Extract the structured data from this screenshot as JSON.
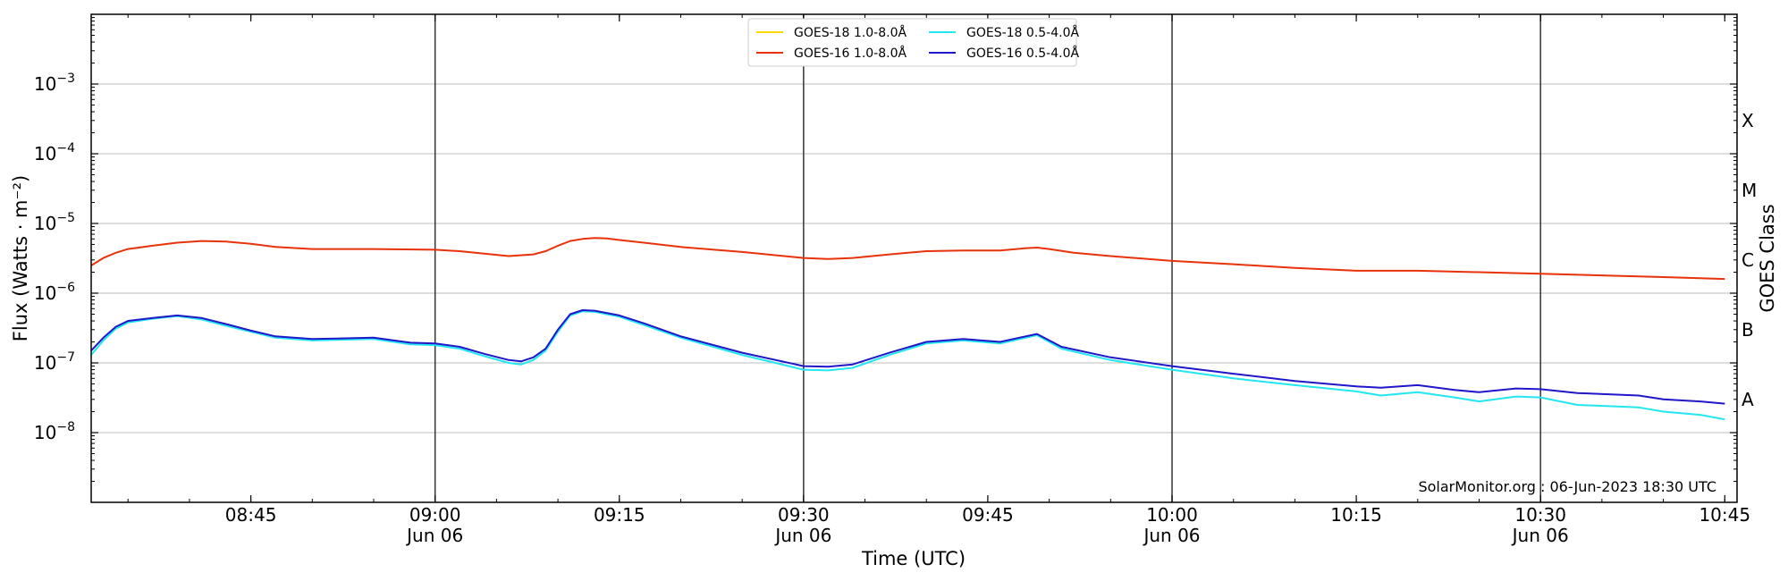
{
  "chart_data": {
    "type": "line",
    "title": "",
    "xlabel": "Time (UTC)",
    "ylabel": "Flux (Watts · m⁻²)",
    "y2label": "GOES Class",
    "y_scale": "log",
    "ylim": [
      1e-09,
      0.01
    ],
    "xlim": [
      "08:32",
      "10:46"
    ],
    "grid": "horizontal major gridlines at each decade",
    "legend_position": "top-center",
    "credit": "SolarMonitor.org : 06-Jun-2023 18:30 UTC",
    "y_ticks": [
      {
        "value": 1e-08,
        "base": "10",
        "exp": "−8"
      },
      {
        "value": 1e-07,
        "base": "10",
        "exp": "−7"
      },
      {
        "value": 1e-06,
        "base": "10",
        "exp": "−6"
      },
      {
        "value": 1e-05,
        "base": "10",
        "exp": "−5"
      },
      {
        "value": 0.0001,
        "base": "10",
        "exp": "−4"
      },
      {
        "value": 0.001,
        "base": "10",
        "exp": "−3"
      }
    ],
    "x_ticks": [
      {
        "time": "08:45",
        "label": "08:45",
        "sublabel": ""
      },
      {
        "time": "09:00",
        "label": "09:00",
        "sublabel": "Jun 06"
      },
      {
        "time": "09:15",
        "label": "09:15",
        "sublabel": ""
      },
      {
        "time": "09:30",
        "label": "09:30",
        "sublabel": "Jun 06"
      },
      {
        "time": "09:45",
        "label": "09:45",
        "sublabel": ""
      },
      {
        "time": "10:00",
        "label": "10:00",
        "sublabel": "Jun 06"
      },
      {
        "time": "10:15",
        "label": "10:15",
        "sublabel": ""
      },
      {
        "time": "10:30",
        "label": "10:30",
        "sublabel": "Jun 06"
      },
      {
        "time": "10:45",
        "label": "10:45",
        "sublabel": ""
      }
    ],
    "vertical_markers": [
      "09:00",
      "09:30",
      "10:00",
      "10:30"
    ],
    "goes_classes": [
      {
        "label": "X",
        "value": 0.0003
      },
      {
        "label": "M",
        "value": 3e-05
      },
      {
        "label": "C",
        "value": 3e-06
      },
      {
        "label": "B",
        "value": 3e-07
      },
      {
        "label": "A",
        "value": 3e-08
      }
    ],
    "series": [
      {
        "name": "GOES-18 1.0-8.0Å",
        "color": "#ffd700",
        "points": []
      },
      {
        "name": "GOES-16 1.0-8.0Å",
        "color": "#e8320a",
        "points": [
          [
            "08:32",
            2.5e-06
          ],
          [
            "08:33",
            3.2e-06
          ],
          [
            "08:34",
            3.8e-06
          ],
          [
            "08:35",
            4.3e-06
          ],
          [
            "08:37",
            4.8e-06
          ],
          [
            "08:39",
            5.3e-06
          ],
          [
            "08:41",
            5.6e-06
          ],
          [
            "08:43",
            5.5e-06
          ],
          [
            "08:45",
            5.1e-06
          ],
          [
            "08:47",
            4.6e-06
          ],
          [
            "08:50",
            4.3e-06
          ],
          [
            "08:55",
            4.3e-06
          ],
          [
            "09:00",
            4.2e-06
          ],
          [
            "09:02",
            4e-06
          ],
          [
            "09:04",
            3.7e-06
          ],
          [
            "09:06",
            3.4e-06
          ],
          [
            "09:08",
            3.6e-06
          ],
          [
            "09:09",
            4e-06
          ],
          [
            "09:10",
            4.8e-06
          ],
          [
            "09:11",
            5.6e-06
          ],
          [
            "09:12",
            6e-06
          ],
          [
            "09:13",
            6.2e-06
          ],
          [
            "09:14",
            6.1e-06
          ],
          [
            "09:15",
            5.8e-06
          ],
          [
            "09:17",
            5.3e-06
          ],
          [
            "09:20",
            4.6e-06
          ],
          [
            "09:25",
            3.9e-06
          ],
          [
            "09:30",
            3.2e-06
          ],
          [
            "09:32",
            3.1e-06
          ],
          [
            "09:34",
            3.2e-06
          ],
          [
            "09:37",
            3.6e-06
          ],
          [
            "09:40",
            4e-06
          ],
          [
            "09:43",
            4.1e-06
          ],
          [
            "09:46",
            4.1e-06
          ],
          [
            "09:48",
            4.4e-06
          ],
          [
            "09:49",
            4.5e-06
          ],
          [
            "09:50",
            4.3e-06
          ],
          [
            "09:52",
            3.8e-06
          ],
          [
            "09:55",
            3.4e-06
          ],
          [
            "10:00",
            2.9e-06
          ],
          [
            "10:05",
            2.6e-06
          ],
          [
            "10:10",
            2.3e-06
          ],
          [
            "10:15",
            2.1e-06
          ],
          [
            "10:20",
            2.1e-06
          ],
          [
            "10:25",
            2e-06
          ],
          [
            "10:30",
            1.9e-06
          ],
          [
            "10:35",
            1.8e-06
          ],
          [
            "10:40",
            1.7e-06
          ],
          [
            "10:45",
            1.6e-06
          ]
        ]
      },
      {
        "name": "GOES-18 0.5-4.0Å",
        "color": "#22e6f0",
        "points": [
          [
            "08:32",
            1.3e-07
          ],
          [
            "08:33",
            2.1e-07
          ],
          [
            "08:34",
            3.1e-07
          ],
          [
            "08:35",
            3.8e-07
          ],
          [
            "08:37",
            4.3e-07
          ],
          [
            "08:39",
            4.7e-07
          ],
          [
            "08:41",
            4.2e-07
          ],
          [
            "08:43",
            3.4e-07
          ],
          [
            "08:45",
            2.8e-07
          ],
          [
            "08:47",
            2.3e-07
          ],
          [
            "08:50",
            2.1e-07
          ],
          [
            "08:55",
            2.2e-07
          ],
          [
            "08:58",
            1.85e-07
          ],
          [
            "09:00",
            1.8e-07
          ],
          [
            "09:02",
            1.6e-07
          ],
          [
            "09:04",
            1.25e-07
          ],
          [
            "09:06",
            1e-07
          ],
          [
            "09:07",
            9.5e-08
          ],
          [
            "09:08",
            1.1e-07
          ],
          [
            "09:09",
            1.5e-07
          ],
          [
            "09:10",
            2.8e-07
          ],
          [
            "09:11",
            4.8e-07
          ],
          [
            "09:12",
            5.5e-07
          ],
          [
            "09:13",
            5.4e-07
          ],
          [
            "09:15",
            4.6e-07
          ],
          [
            "09:17",
            3.5e-07
          ],
          [
            "09:20",
            2.3e-07
          ],
          [
            "09:25",
            1.3e-07
          ],
          [
            "09:30",
            8e-08
          ],
          [
            "09:32",
            7.8e-08
          ],
          [
            "09:34",
            8.5e-08
          ],
          [
            "09:37",
            1.3e-07
          ],
          [
            "09:40",
            1.9e-07
          ],
          [
            "09:43",
            2.1e-07
          ],
          [
            "09:46",
            1.9e-07
          ],
          [
            "09:49",
            2.5e-07
          ],
          [
            "09:51",
            1.6e-07
          ],
          [
            "09:55",
            1.1e-07
          ],
          [
            "10:00",
            8e-08
          ],
          [
            "10:05",
            6e-08
          ],
          [
            "10:10",
            4.8e-08
          ],
          [
            "10:15",
            3.9e-08
          ],
          [
            "10:17",
            3.4e-08
          ],
          [
            "10:20",
            3.8e-08
          ],
          [
            "10:23",
            3.2e-08
          ],
          [
            "10:25",
            2.8e-08
          ],
          [
            "10:28",
            3.3e-08
          ],
          [
            "10:30",
            3.2e-08
          ],
          [
            "10:33",
            2.5e-08
          ],
          [
            "10:38",
            2.3e-08
          ],
          [
            "10:40",
            2e-08
          ],
          [
            "10:43",
            1.8e-08
          ],
          [
            "10:45",
            1.55e-08
          ]
        ]
      },
      {
        "name": "GOES-16 0.5-4.0Å",
        "color": "#1f17c9",
        "points": [
          [
            "08:32",
            1.5e-07
          ],
          [
            "08:33",
            2.3e-07
          ],
          [
            "08:34",
            3.3e-07
          ],
          [
            "08:35",
            4e-07
          ],
          [
            "08:37",
            4.4e-07
          ],
          [
            "08:39",
            4.8e-07
          ],
          [
            "08:41",
            4.4e-07
          ],
          [
            "08:43",
            3.6e-07
          ],
          [
            "08:45",
            2.9e-07
          ],
          [
            "08:47",
            2.4e-07
          ],
          [
            "08:50",
            2.2e-07
          ],
          [
            "08:55",
            2.3e-07
          ],
          [
            "08:58",
            1.95e-07
          ],
          [
            "09:00",
            1.9e-07
          ],
          [
            "09:02",
            1.7e-07
          ],
          [
            "09:04",
            1.35e-07
          ],
          [
            "09:06",
            1.1e-07
          ],
          [
            "09:07",
            1.05e-07
          ],
          [
            "09:08",
            1.2e-07
          ],
          [
            "09:09",
            1.6e-07
          ],
          [
            "09:10",
            3e-07
          ],
          [
            "09:11",
            5e-07
          ],
          [
            "09:12",
            5.7e-07
          ],
          [
            "09:13",
            5.6e-07
          ],
          [
            "09:15",
            4.8e-07
          ],
          [
            "09:17",
            3.7e-07
          ],
          [
            "09:20",
            2.4e-07
          ],
          [
            "09:25",
            1.4e-07
          ],
          [
            "09:30",
            9e-08
          ],
          [
            "09:32",
            8.8e-08
          ],
          [
            "09:34",
            9.5e-08
          ],
          [
            "09:37",
            1.4e-07
          ],
          [
            "09:40",
            2e-07
          ],
          [
            "09:43",
            2.2e-07
          ],
          [
            "09:46",
            2e-07
          ],
          [
            "09:49",
            2.6e-07
          ],
          [
            "09:51",
            1.7e-07
          ],
          [
            "09:55",
            1.2e-07
          ],
          [
            "10:00",
            9e-08
          ],
          [
            "10:05",
            7e-08
          ],
          [
            "10:10",
            5.5e-08
          ],
          [
            "10:15",
            4.6e-08
          ],
          [
            "10:17",
            4.4e-08
          ],
          [
            "10:20",
            4.8e-08
          ],
          [
            "10:23",
            4.1e-08
          ],
          [
            "10:25",
            3.8e-08
          ],
          [
            "10:28",
            4.3e-08
          ],
          [
            "10:30",
            4.2e-08
          ],
          [
            "10:33",
            3.7e-08
          ],
          [
            "10:38",
            3.4e-08
          ],
          [
            "10:40",
            3e-08
          ],
          [
            "10:43",
            2.8e-08
          ],
          [
            "10:45",
            2.6e-08
          ]
        ]
      }
    ]
  }
}
